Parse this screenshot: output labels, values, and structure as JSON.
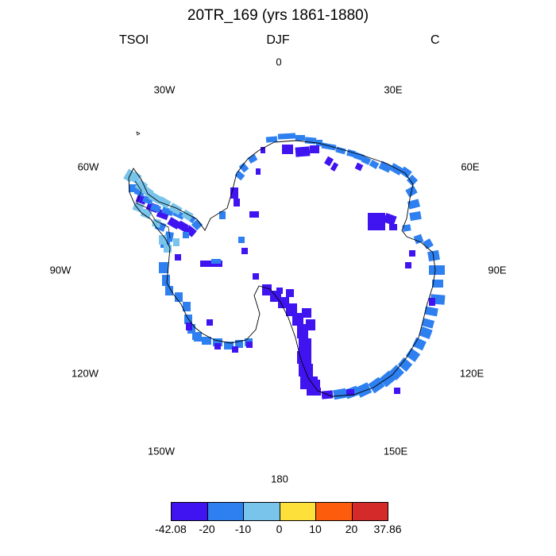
{
  "title": "20TR_169 (yrs 1861-1880)",
  "subtitle": {
    "left": "TSOI",
    "center": "DJF",
    "right": "C"
  },
  "longitude_labels": {
    "lon_0": "0",
    "lon_30e": "30E",
    "lon_60e": "60E",
    "lon_90e": "90E",
    "lon_120e": "120E",
    "lon_150e": "150E",
    "lon_180": "180",
    "lon_150w": "150W",
    "lon_120w": "120W",
    "lon_90w": "90W",
    "lon_60w": "60W",
    "lon_30w": "30W"
  },
  "colorbar": {
    "colors": [
      "#4014f0",
      "#2e80f0",
      "#78c4ea",
      "#fde03a",
      "#fd5c0c",
      "#d52a2a"
    ],
    "ticks": [
      "-42.08",
      "-20",
      "-10",
      "0",
      "10",
      "20",
      "37.86"
    ]
  },
  "colors": {
    "coast": "#000000",
    "background": "#ffffff"
  }
}
